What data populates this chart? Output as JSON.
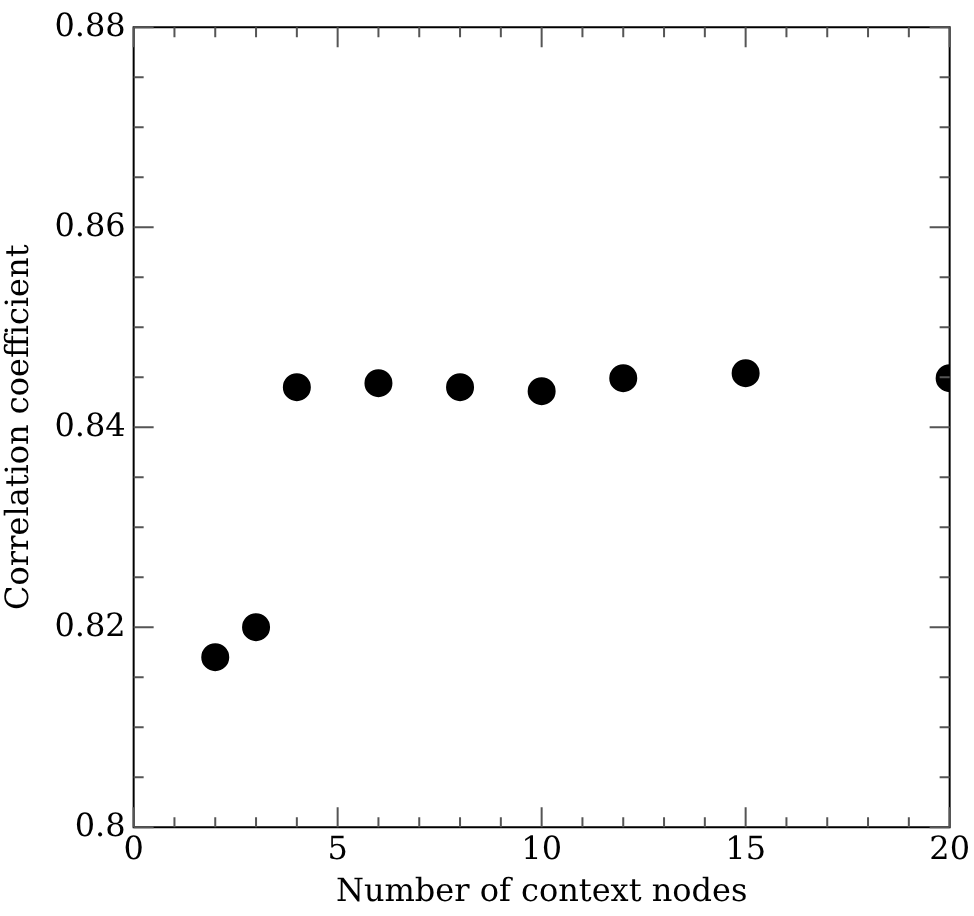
{
  "chart_data": {
    "type": "scatter",
    "xlabel": "Number of context nodes",
    "ylabel": "Correlation coefficient",
    "x": [
      2,
      3,
      4,
      6,
      8,
      10,
      12,
      15,
      20
    ],
    "values": [
      0.817,
      0.82,
      0.844,
      0.8444,
      0.844,
      0.8436,
      0.8449,
      0.8454,
      0.8449
    ],
    "color": "#000000",
    "marker": "circle",
    "grid": false,
    "legend": false,
    "xlim": [
      0,
      20
    ],
    "ylim": [
      0.8,
      0.88
    ],
    "xticks": [
      0,
      {
        "value": 1,
        "label": null
      },
      {
        "value": 2,
        "label": null
      },
      {
        "value": 3,
        "label": null
      },
      {
        "value": 4,
        "label": null
      },
      5,
      {
        "value": 6,
        "label": null
      },
      {
        "value": 7,
        "label": null
      },
      {
        "value": 8,
        "label": null
      },
      {
        "value": 9,
        "label": null
      },
      10,
      {
        "value": 11,
        "label": null
      },
      {
        "value": 12,
        "label": null
      },
      {
        "value": 13,
        "label": null
      },
      {
        "value": 14,
        "label": null
      },
      15,
      {
        "value": 16,
        "label": null
      },
      {
        "value": 17,
        "label": null
      },
      {
        "value": 18,
        "label": null
      },
      {
        "value": 19,
        "label": null
      },
      20
    ],
    "yticks": [
      {
        "value": 0.8,
        "label": "0.8"
      },
      {
        "value": 0.805,
        "label": null
      },
      {
        "value": 0.81,
        "label": null
      },
      {
        "value": 0.815,
        "label": null
      },
      0.82,
      {
        "value": 0.825,
        "label": null
      },
      {
        "value": 0.83,
        "label": null
      },
      {
        "value": 0.835,
        "label": null
      },
      0.84,
      {
        "value": 0.845,
        "label": null
      },
      {
        "value": 0.85,
        "label": null
      },
      {
        "value": 0.855,
        "label": null
      },
      0.86,
      {
        "value": 0.865,
        "label": null
      },
      {
        "value": 0.87,
        "label": null
      },
      {
        "value": 0.875,
        "label": null
      },
      0.88
    ]
  }
}
